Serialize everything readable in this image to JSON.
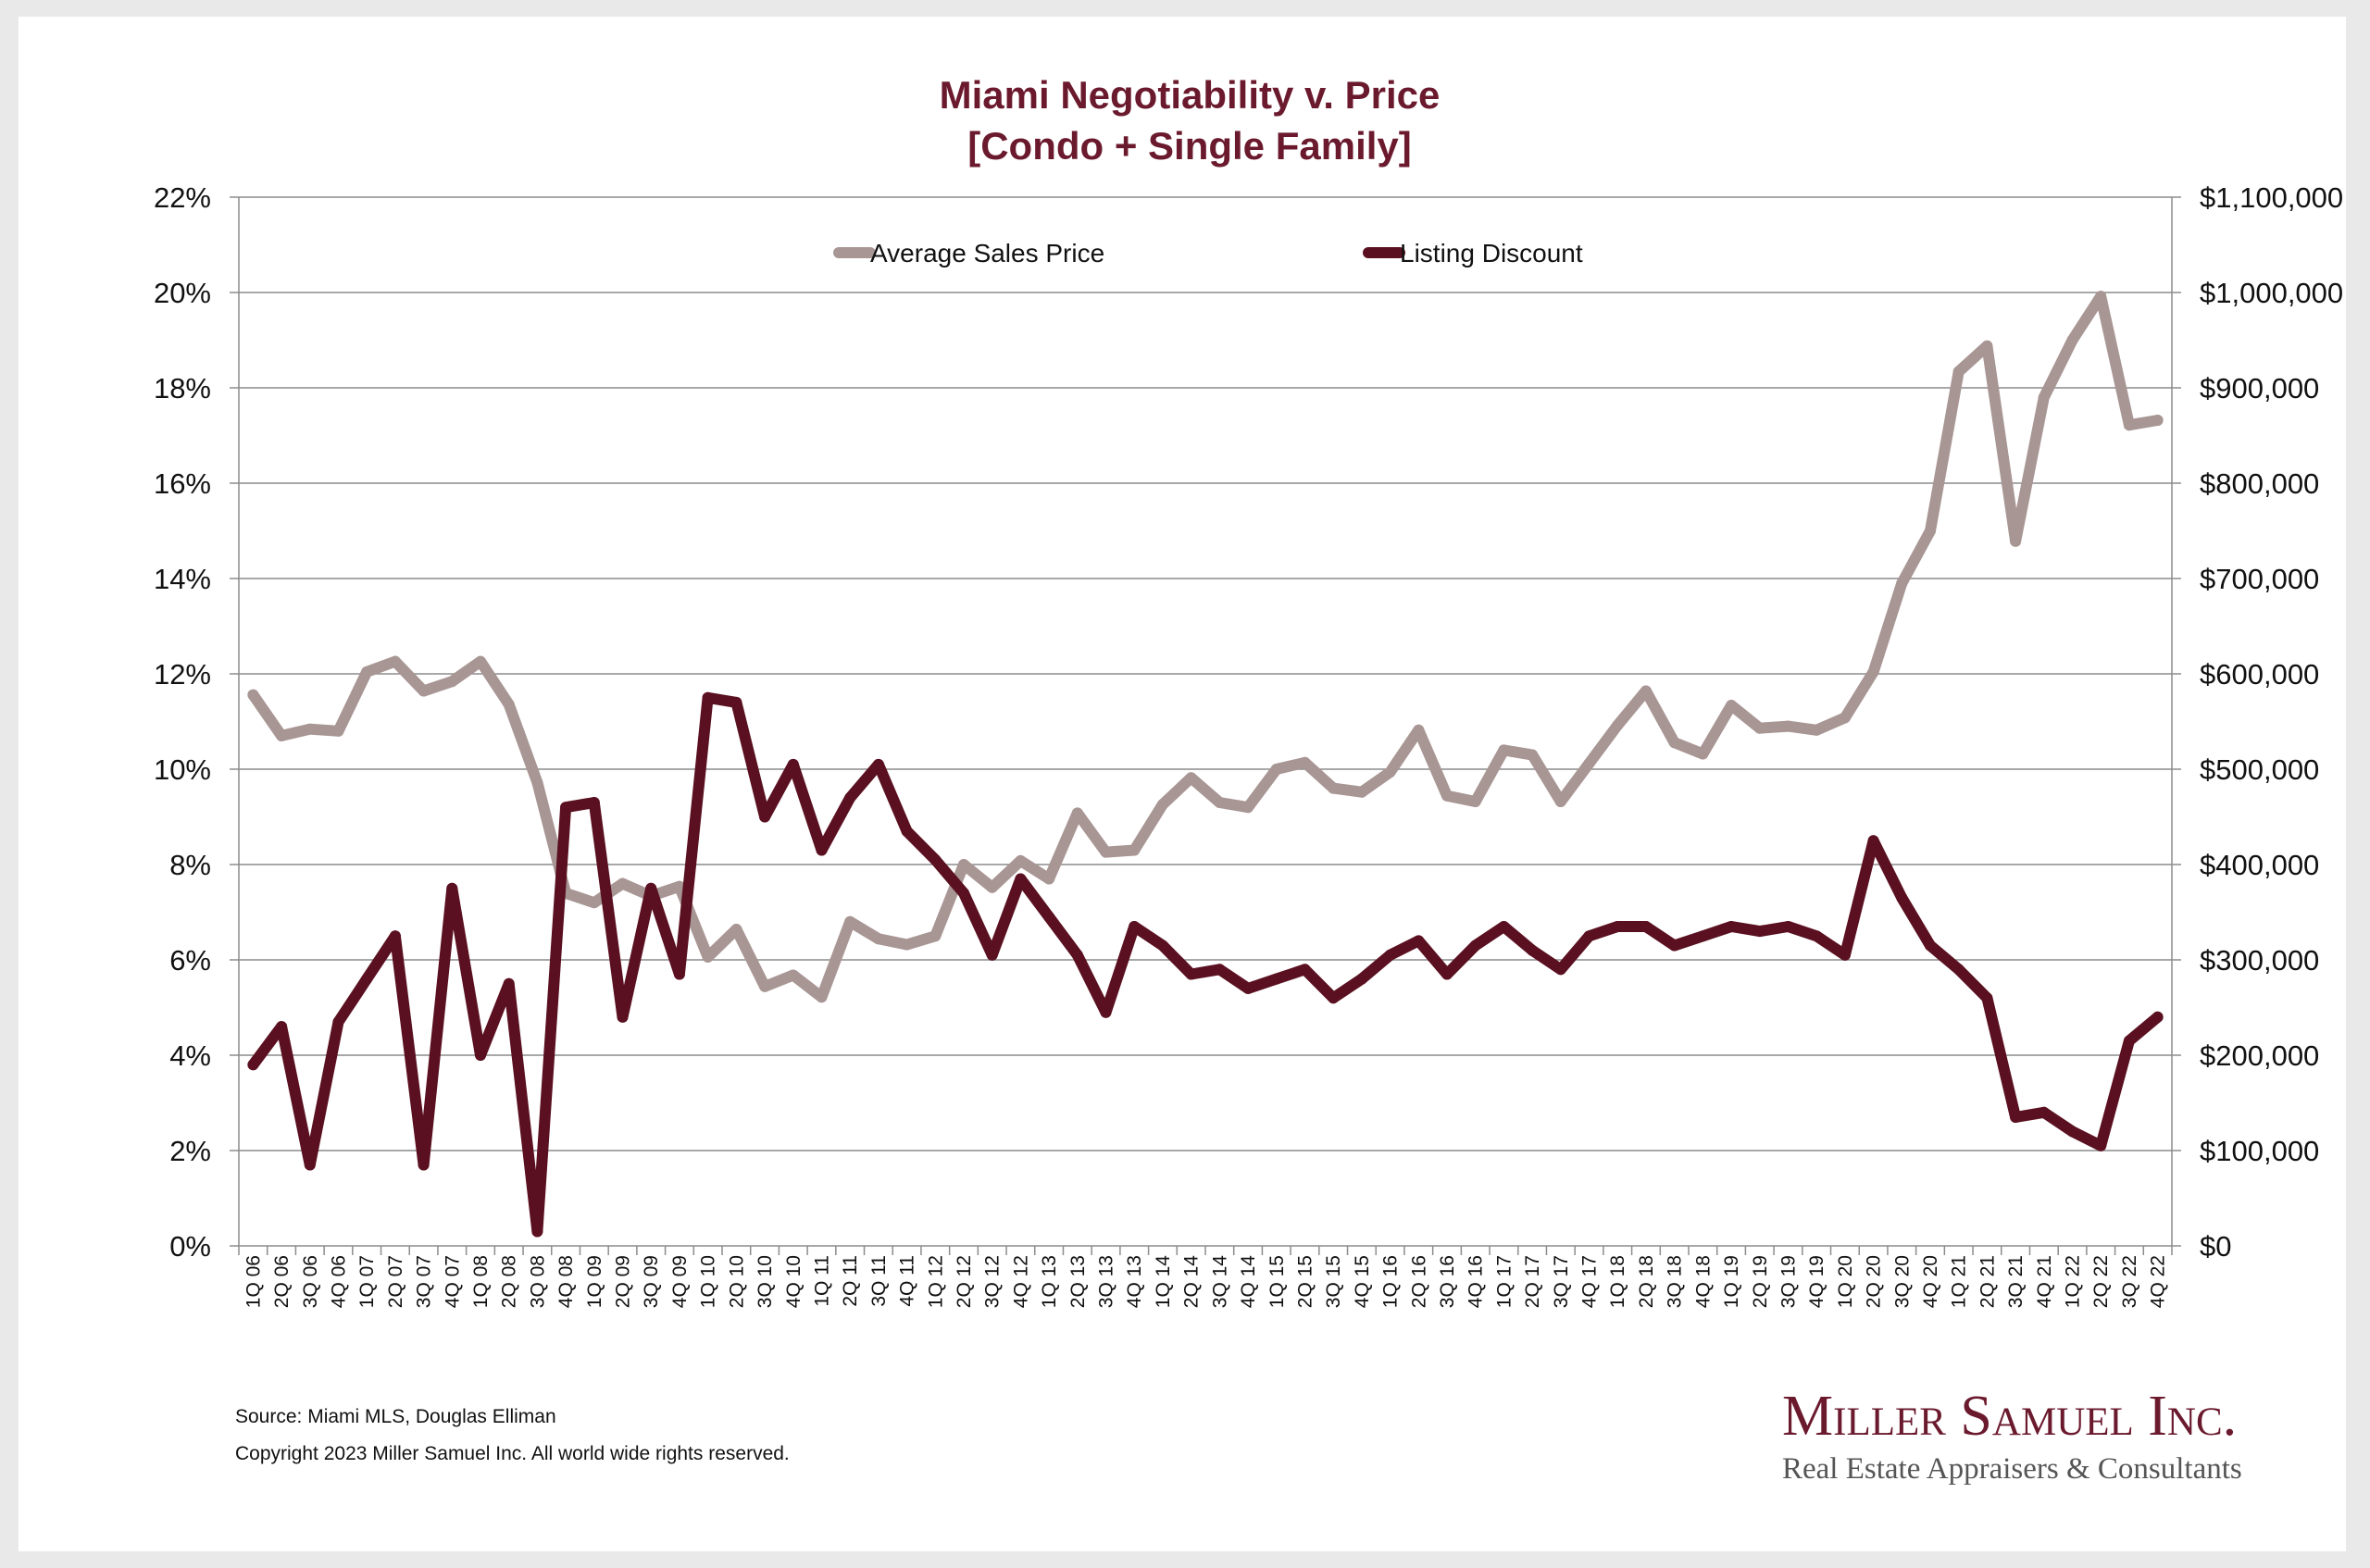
{
  "chart_data": {
    "type": "line",
    "title": "Miami Negotiability v. Price",
    "subtitle": "[Condo + Single Family]",
    "legend_position": "top-center",
    "grid": true,
    "x": [
      "1Q 06",
      "2Q 06",
      "3Q 06",
      "4Q 06",
      "1Q 07",
      "2Q 07",
      "3Q 07",
      "4Q 07",
      "1Q 08",
      "2Q 08",
      "3Q 08",
      "4Q 08",
      "1Q 09",
      "2Q 09",
      "3Q 09",
      "4Q 09",
      "1Q 10",
      "2Q 10",
      "3Q 10",
      "4Q 10",
      "1Q 11",
      "2Q 11",
      "3Q 11",
      "4Q 11",
      "1Q 12",
      "2Q 12",
      "3Q 12",
      "4Q 12",
      "1Q 13",
      "2Q 13",
      "3Q 13",
      "4Q 13",
      "1Q 14",
      "2Q 14",
      "3Q 14",
      "4Q 14",
      "1Q 15",
      "2Q 15",
      "3Q 15",
      "4Q 15",
      "1Q 16",
      "2Q 16",
      "3Q 16",
      "4Q 16",
      "1Q 17",
      "2Q 17",
      "3Q 17",
      "4Q 17",
      "1Q 18",
      "2Q 18",
      "3Q 18",
      "4Q 18",
      "1Q 19",
      "2Q 19",
      "3Q 19",
      "4Q 19",
      "1Q 20",
      "2Q 20",
      "3Q 20",
      "4Q 20",
      "1Q 21",
      "2Q 21",
      "3Q 21",
      "4Q 21",
      "1Q 22",
      "2Q 22",
      "3Q 22",
      "4Q 22"
    ],
    "y_left": {
      "ylim": [
        0,
        22
      ],
      "ticks": [
        "0%",
        "2%",
        "4%",
        "6%",
        "8%",
        "10%",
        "12%",
        "14%",
        "16%",
        "18%",
        "20%",
        "22%"
      ]
    },
    "y_right": {
      "ylim": [
        0,
        1100000
      ],
      "ticks": [
        "$0",
        "$100,000",
        "$200,000",
        "$300,000",
        "$400,000",
        "$500,000",
        "$600,000",
        "$700,000",
        "$800,000",
        "$900,000",
        "$1,000,000",
        "$1,100,000"
      ]
    },
    "series": [
      {
        "name": "Average Sales Price",
        "axis": "right",
        "color": "#a89694",
        "values": [
          578000,
          535000,
          542000,
          540000,
          602000,
          613000,
          582000,
          592000,
          613000,
          568000,
          486000,
          370000,
          360000,
          380000,
          367000,
          377000,
          303000,
          332000,
          272000,
          284000,
          261000,
          340000,
          322000,
          316000,
          325000,
          400000,
          376000,
          404000,
          385000,
          454000,
          413000,
          415000,
          463000,
          491000,
          465000,
          460000,
          500000,
          507000,
          480000,
          476000,
          497000,
          541000,
          472000,
          466000,
          520000,
          515000,
          466000,
          506000,
          546000,
          582000,
          528000,
          516000,
          567000,
          543000,
          545000,
          541000,
          554000,
          602000,
          695000,
          750000,
          917000,
          944000,
          739000,
          890000,
          950000,
          996000,
          861000,
          866000
        ]
      },
      {
        "name": "Listing Discount",
        "axis": "left",
        "color": "#5a1020",
        "values": [
          3.8,
          4.6,
          1.7,
          4.7,
          5.6,
          6.5,
          1.7,
          7.5,
          4.0,
          5.5,
          0.3,
          9.2,
          9.3,
          4.8,
          7.5,
          5.7,
          11.5,
          11.4,
          9.0,
          10.1,
          8.3,
          9.4,
          10.1,
          8.7,
          8.1,
          7.4,
          6.1,
          7.7,
          6.9,
          6.1,
          4.9,
          6.7,
          6.3,
          5.7,
          5.8,
          5.4,
          5.6,
          5.8,
          5.2,
          5.6,
          6.1,
          6.4,
          5.7,
          6.3,
          6.7,
          6.2,
          5.8,
          6.5,
          6.7,
          6.7,
          6.3,
          6.5,
          6.7,
          6.6,
          6.7,
          6.5,
          6.1,
          8.5,
          7.3,
          6.3,
          5.8,
          5.2,
          2.7,
          2.8,
          2.4,
          2.1,
          4.3,
          4.8
        ]
      }
    ]
  },
  "footer": {
    "source": "Source: Miami MLS, Douglas Elliman",
    "copyright": "Copyright 2023 Miller Samuel Inc.  All world wide rights reserved."
  },
  "brand": {
    "name": "Miller Samuel Inc.",
    "tagline": "Real Estate Appraisers & Consultants"
  }
}
